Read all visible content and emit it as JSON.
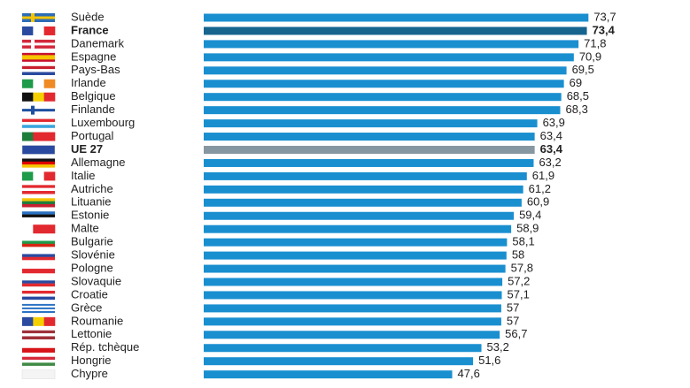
{
  "chart_data": {
    "type": "bar",
    "orientation": "horizontal",
    "categories": [
      "Suède",
      "France",
      "Danemark",
      "Espagne",
      "Pays-Bas",
      "Irlande",
      "Belgique",
      "Finlande",
      "Luxembourg",
      "Portugal",
      "UE 27",
      "Allemagne",
      "Italie",
      "Autriche",
      "Lituanie",
      "Estonie",
      "Malte",
      "Bulgarie",
      "Slovénie",
      "Pologne",
      "Slovaquie",
      "Croatie",
      "Grèce",
      "Roumanie",
      "Lettonie",
      "Rép. tchèque",
      "Hongrie",
      "Chypre"
    ],
    "values": [
      73.7,
      73.4,
      71.8,
      70.9,
      69.5,
      69,
      68.5,
      68.3,
      63.9,
      63.4,
      63.4,
      63.2,
      61.9,
      61.2,
      60.9,
      59.4,
      58.9,
      58.1,
      58,
      57.8,
      57.2,
      57.1,
      57,
      57,
      56.7,
      53.2,
      51.6,
      47.6
    ],
    "value_labels": [
      "73,7",
      "73,4",
      "71,8",
      "70,9",
      "69,5",
      "69",
      "68,5",
      "68,3",
      "63,9",
      "63,4",
      "63,4",
      "63,2",
      "61,9",
      "61,2",
      "60,9",
      "59,4",
      "58,9",
      "58,1",
      "58",
      "57,8",
      "57,2",
      "57,1",
      "57",
      "57",
      "56,7",
      "53,2",
      "51,6",
      "47,6"
    ],
    "color": "#1a8fd0",
    "colors": [
      "#1a8fd0",
      "#17648f",
      "#1a8fd0",
      "#1a8fd0",
      "#1a8fd0",
      "#1a8fd0",
      "#1a8fd0",
      "#1a8fd0",
      "#1a8fd0",
      "#1a8fd0",
      "#8797a1",
      "#1a8fd0",
      "#1a8fd0",
      "#1a8fd0",
      "#1a8fd0",
      "#1a8fd0",
      "#1a8fd0",
      "#1a8fd0",
      "#1a8fd0",
      "#1a8fd0",
      "#1a8fd0",
      "#1a8fd0",
      "#1a8fd0",
      "#1a8fd0",
      "#1a8fd0",
      "#1a8fd0",
      "#1a8fd0",
      "#1a8fd0"
    ],
    "xlim": [
      0,
      75
    ]
  }
}
